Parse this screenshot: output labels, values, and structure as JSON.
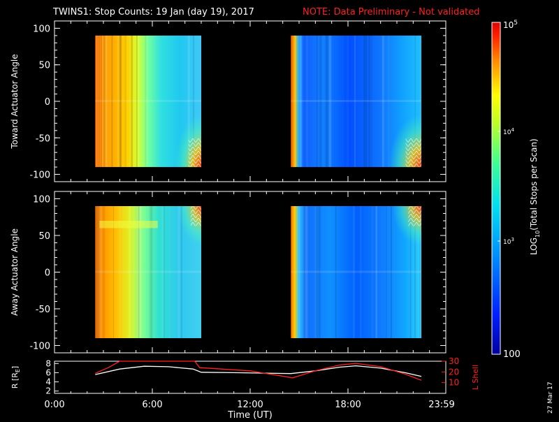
{
  "header": {
    "title": "TWINS1: Stop Counts: 19 Jan (day  19), 2017",
    "note": "NOTE: Data Preliminary - Not validated",
    "note_color": "#ff2020"
  },
  "colorbar": {
    "label": "LOG10(Total Stops per Scan)",
    "label_main": "LOG",
    "label_sub": "10",
    "label_rest": "(Total Stops per Scan)",
    "tick_top": "10",
    "tick_top_exp": "5",
    "tick_mid": "10",
    "tick_mid_exp": "4",
    "tick_low": "10",
    "tick_low_exp": "3",
    "tick_bottom": "100",
    "range_log": [
      2,
      5
    ]
  },
  "footer": {
    "date_stamp": "27 Mar 17"
  },
  "chart_data": [
    {
      "type": "heatmap",
      "ylabel": "Toward Actuator Angle",
      "yticks": [
        "100",
        "50",
        "0",
        "-50",
        "-100"
      ],
      "ylim": [
        -110,
        110
      ],
      "xlim_hours": [
        0,
        24
      ],
      "data_blocks_hours": [
        [
          2.5,
          9.0
        ],
        [
          14.5,
          22.5
        ]
      ],
      "data_angle_range": [
        -90,
        90
      ],
      "log_range": [
        2,
        5
      ]
    },
    {
      "type": "heatmap",
      "ylabel": "Away Actuator Angle",
      "yticks": [
        "100",
        "50",
        "0",
        "-50",
        "-100"
      ],
      "ylim": [
        -110,
        110
      ],
      "xlim_hours": [
        0,
        24
      ],
      "data_blocks_hours": [
        [
          2.5,
          9.0
        ],
        [
          14.5,
          22.5
        ]
      ],
      "data_angle_range": [
        -90,
        90
      ],
      "log_range": [
        2,
        5
      ]
    },
    {
      "type": "line",
      "xlabel": "Time (UT)",
      "xticks": [
        "0:00",
        "6:00",
        "12:00",
        "18:00",
        "23:59"
      ],
      "ylabel_left": "R [RE]",
      "ylabel_left_main": "R [R",
      "ylabel_left_sub": "E",
      "ylabel_left_close": "]",
      "yticks_left": [
        "2",
        "4",
        "6",
        "8"
      ],
      "ylim_left": [
        1.5,
        8.5
      ],
      "ylabel_right": "L Shell",
      "yticks_right": [
        "10",
        "20",
        "30"
      ],
      "ylim_right": [
        0,
        30
      ],
      "series": [
        {
          "name": "R",
          "color": "#ffffff",
          "x": [
            2.5,
            4,
            5.5,
            7,
            8.5,
            9,
            11,
            13,
            14.5,
            16,
            17.5,
            18.5,
            20,
            21.5,
            22.5
          ],
          "y": [
            5.6,
            6.8,
            7.4,
            7.3,
            6.8,
            6.1,
            6.0,
            5.9,
            5.8,
            6.4,
            7.2,
            7.5,
            7.0,
            6.0,
            5.2
          ]
        },
        {
          "name": "L Shell",
          "color": "#ff2020",
          "x": [
            2.5,
            3.3,
            4.0,
            8.6,
            8.9,
            12,
            14.6,
            16,
            17.5,
            18.5,
            20,
            21.5,
            22.5
          ],
          "y": [
            18.7,
            24,
            30,
            30,
            24,
            21,
            14.5,
            21,
            26.5,
            28,
            25,
            18,
            12.2
          ]
        }
      ]
    }
  ]
}
